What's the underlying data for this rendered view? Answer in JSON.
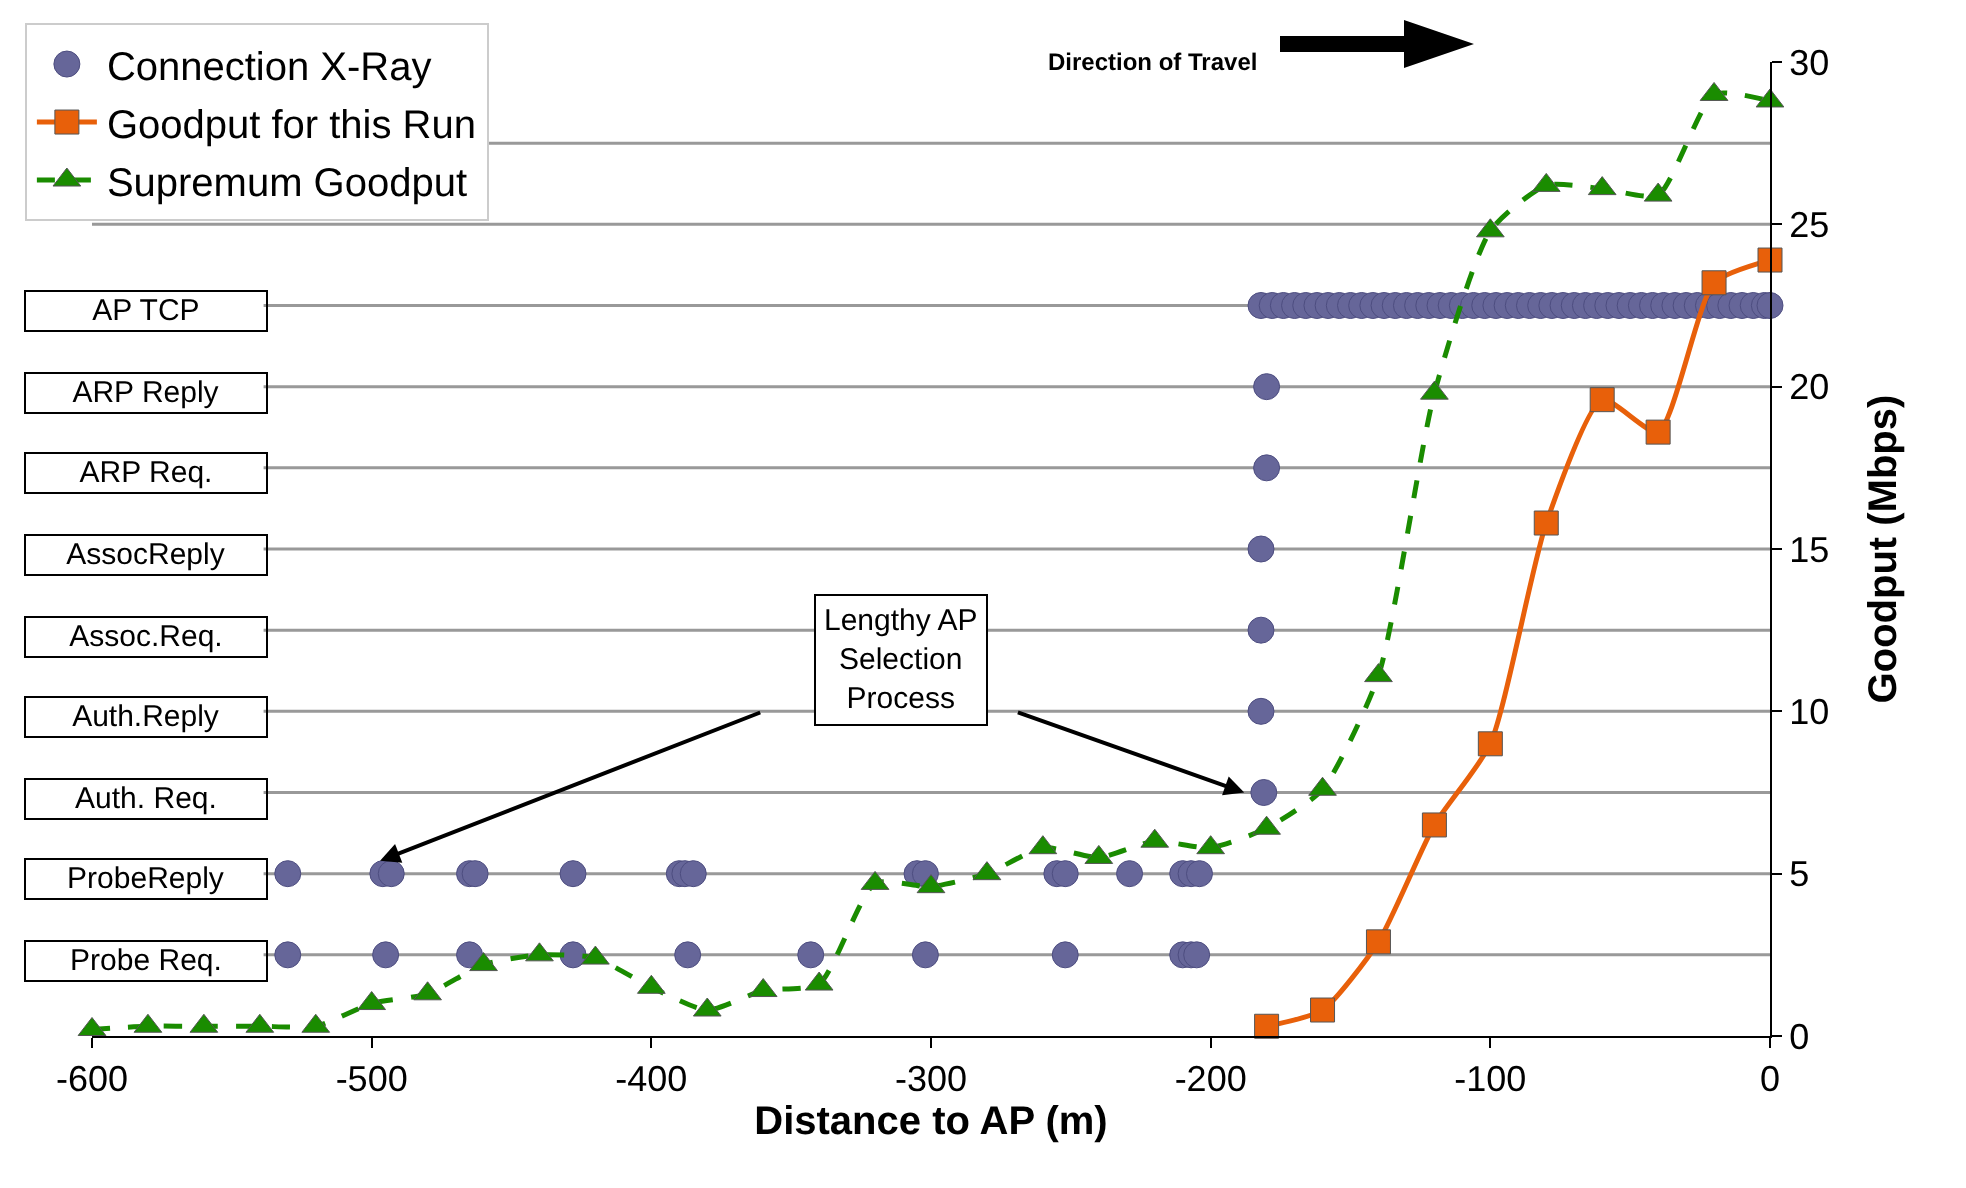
{
  "chart_data": {
    "type": "line",
    "xlabel": "Distance to AP (m)",
    "ylabel": "Goodput (Mbps)",
    "xlim": [
      -600,
      0
    ],
    "xticks": [
      -600,
      -500,
      -400,
      -300,
      -200,
      -100,
      0
    ],
    "ylim": [
      0,
      30
    ],
    "yticks": [
      0,
      5,
      10,
      15,
      20,
      25,
      30
    ],
    "legend": "top left",
    "series": [
      {
        "name": "Connection X-Ray",
        "type": "scatter",
        "marker": "circle",
        "color": "#666699",
        "x": [
          -530,
          -495,
          -465,
          -428,
          -387,
          -343,
          -302,
          -252,
          -210,
          -207,
          -205,
          -530,
          -496,
          -493,
          -465,
          -463,
          -428,
          -390,
          -388,
          -385,
          -305,
          -302,
          -255,
          -252,
          -229,
          -210,
          -207,
          -204,
          -181,
          -182,
          -182,
          -182,
          -180,
          -180,
          -182,
          -178,
          -174,
          -170,
          -166,
          -162,
          -158,
          -154,
          -150,
          -146,
          -142,
          -138,
          -134,
          -130,
          -126,
          -122,
          -118,
          -114,
          -110,
          -106,
          -102,
          -98,
          -94,
          -90,
          -86,
          -82,
          -78,
          -74,
          -70,
          -66,
          -62,
          -58,
          -54,
          -50,
          -46,
          -42,
          -38,
          -34,
          -30,
          -26,
          -22,
          -18,
          -14,
          -10,
          -6,
          -2,
          0
        ],
        "values": [
          2.5,
          2.5,
          2.5,
          2.5,
          2.5,
          2.5,
          2.5,
          2.5,
          2.5,
          2.5,
          2.5,
          5,
          5,
          5,
          5,
          5,
          5,
          5,
          5,
          5,
          5,
          5,
          5,
          5,
          5,
          5,
          5,
          5,
          7.5,
          10,
          12.5,
          15,
          17.5,
          20,
          22.5,
          22.5,
          22.5,
          22.5,
          22.5,
          22.5,
          22.5,
          22.5,
          22.5,
          22.5,
          22.5,
          22.5,
          22.5,
          22.5,
          22.5,
          22.5,
          22.5,
          22.5,
          22.5,
          22.5,
          22.5,
          22.5,
          22.5,
          22.5,
          22.5,
          22.5,
          22.5,
          22.5,
          22.5,
          22.5,
          22.5,
          22.5,
          22.5,
          22.5,
          22.5,
          22.5,
          22.5,
          22.5,
          22.5,
          22.5,
          22.5,
          22.5,
          22.5,
          22.5,
          22.5,
          22.5,
          22.5
        ]
      },
      {
        "name": "Goodput for this Run",
        "type": "line",
        "marker": "square",
        "line_style": "solid",
        "color": "#e8600a",
        "x": [
          -180,
          -160,
          -140,
          -120,
          -100,
          -80,
          -60,
          -40,
          -20,
          0
        ],
        "values": [
          0.3,
          0.8,
          2.9,
          6.5,
          9.0,
          15.8,
          19.6,
          18.6,
          23.2,
          23.9
        ]
      },
      {
        "name": "Supremum Goodput",
        "type": "line",
        "marker": "triangle",
        "line_style": "dashed",
        "color": "#1a8c00",
        "x": [
          -600,
          -580,
          -560,
          -540,
          -520,
          -500,
          -480,
          -460,
          -440,
          -420,
          -400,
          -380,
          -360,
          -340,
          -320,
          -300,
          -280,
          -260,
          -240,
          -220,
          -200,
          -180,
          -160,
          -140,
          -120,
          -100,
          -80,
          -60,
          -40,
          -20,
          0
        ],
        "values": [
          0.2,
          0.3,
          0.3,
          0.3,
          0.3,
          1.0,
          1.3,
          2.2,
          2.5,
          2.4,
          1.5,
          0.8,
          1.4,
          1.6,
          4.7,
          4.6,
          5.0,
          5.8,
          5.5,
          6.0,
          5.8,
          6.4,
          7.6,
          11.1,
          19.8,
          24.8,
          26.2,
          26.1,
          25.9,
          29.0,
          28.8
        ]
      }
    ],
    "ref_lines": [
      {
        "axis": "y",
        "value": 2.5,
        "label": "Probe Req.",
        "color": "#999999"
      },
      {
        "axis": "y",
        "value": 5,
        "label": "ProbeReply",
        "color": "#999999"
      },
      {
        "axis": "y",
        "value": 7.5,
        "label": "Auth. Req.",
        "color": "#999999"
      },
      {
        "axis": "y",
        "value": 10,
        "label": "Auth.Reply",
        "color": "#999999"
      },
      {
        "axis": "y",
        "value": 12.5,
        "label": "Assoc.Req.",
        "color": "#999999"
      },
      {
        "axis": "y",
        "value": 15,
        "label": "AssocReply",
        "color": "#999999"
      },
      {
        "axis": "y",
        "value": 17.5,
        "label": "ARP Req.",
        "color": "#999999"
      },
      {
        "axis": "y",
        "value": 20,
        "label": "ARP Reply",
        "color": "#999999"
      },
      {
        "axis": "y",
        "value": 22.5,
        "label": "AP TCP",
        "color": "#999999"
      },
      {
        "axis": "y",
        "value": 25,
        "color": "#999999"
      },
      {
        "axis": "y",
        "value": 27.5,
        "color": "#999999"
      }
    ],
    "annotations": [
      "Direction of Travel",
      "Lengthy AP\nSelection\nProcess"
    ]
  }
}
